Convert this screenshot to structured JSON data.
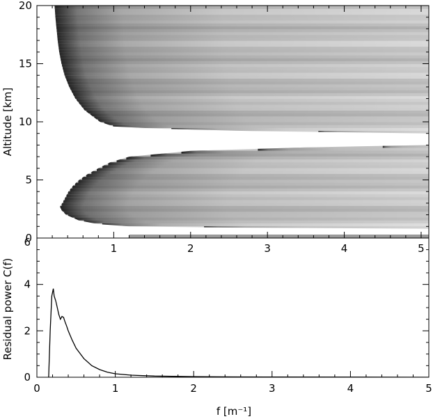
{
  "chart_data": [
    {
      "type": "heatmap",
      "title": "",
      "xlabel": "",
      "ylabel": "Altitude [km]",
      "xlim": [
        0,
        5.1
      ],
      "ylim": [
        0,
        20
      ],
      "x_tick_labels": [
        "1",
        "2",
        "3",
        "4",
        "5"
      ],
      "y_tick_labels": [
        "0",
        "5",
        "10",
        "15",
        "20"
      ],
      "colormap": "greyscale, dark = high power, white = masked",
      "upper_region_boundary": {
        "altitude_km": [
          20,
          19,
          18,
          17,
          16,
          15,
          14,
          13,
          12,
          11,
          10,
          9.6,
          9.4,
          9.2,
          9.0
        ],
        "f_min": [
          0.23,
          0.24,
          0.255,
          0.27,
          0.29,
          0.32,
          0.36,
          0.42,
          0.5,
          0.62,
          0.82,
          1.0,
          1.6,
          2.8,
          5.1
        ]
      },
      "lower_region_boundary": {
        "altitude_km": [
          8.0,
          7.8,
          7.5,
          7.0,
          6.5,
          6.0,
          5.5,
          5.0,
          4.5,
          4.0,
          3.5,
          3.0,
          2.7,
          2.4,
          2.0,
          1.5,
          1.2,
          1.0,
          0.9,
          0.8
        ],
        "f_min": [
          5.1,
          3.5,
          2.0,
          1.2,
          0.95,
          0.8,
          0.66,
          0.55,
          0.47,
          0.41,
          0.37,
          0.33,
          0.3,
          0.32,
          0.38,
          0.55,
          0.8,
          1.2,
          2.5,
          5.1
        ]
      },
      "surface_band": {
        "altitude_km": [
          0,
          0.3
        ],
        "f_min": 1.2
      }
    },
    {
      "type": "line",
      "title": "",
      "xlabel": "f [m⁻¹]",
      "ylabel": "Residual power C(f)",
      "xlim": [
        0,
        5
      ],
      "ylim": [
        0,
        6
      ],
      "x_tick_labels": [
        "0",
        "1",
        "2",
        "3",
        "4",
        "5"
      ],
      "y_tick_labels": [
        "0",
        "2",
        "4",
        "6"
      ],
      "series": [
        {
          "name": "",
          "x": [
            0.15,
            0.17,
            0.19,
            0.21,
            0.22,
            0.24,
            0.26,
            0.28,
            0.3,
            0.32,
            0.34,
            0.36,
            0.38,
            0.4,
            0.45,
            0.5,
            0.6,
            0.7,
            0.8,
            0.9,
            1.0,
            1.2,
            1.5,
            2.0,
            2.5,
            3.0,
            4.0,
            5.0
          ],
          "y": [
            0.0,
            2.0,
            3.5,
            3.82,
            3.5,
            3.3,
            3.0,
            2.7,
            2.5,
            2.62,
            2.58,
            2.38,
            2.2,
            2.0,
            1.6,
            1.25,
            0.8,
            0.5,
            0.33,
            0.22,
            0.15,
            0.09,
            0.05,
            0.025,
            0.015,
            0.01,
            0.005,
            0.0
          ]
        }
      ]
    }
  ]
}
